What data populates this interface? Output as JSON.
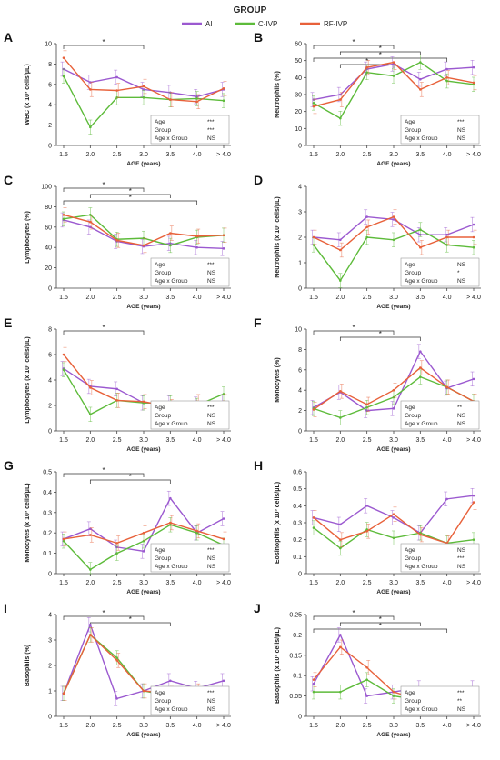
{
  "legend": {
    "title": "GROUP",
    "entries": [
      {
        "label": "AI",
        "color": "#9b59d0"
      },
      {
        "label": "C-IVP",
        "color": "#5dbb3a"
      },
      {
        "label": "RF-IVP",
        "color": "#e8613a"
      }
    ]
  },
  "x_categories": [
    "1.5",
    "2.0",
    "2.5",
    "3.0",
    "3.5",
    "4.0",
    "> 4.0"
  ],
  "xlabel": "AGE (years)",
  "stats_labels": [
    "Age",
    "Group",
    "Age x Group"
  ],
  "chart_data": [
    {
      "letter": "A",
      "type": "line",
      "ylabel": "WBC (x 10³ cells/μL)",
      "ylim": [
        0,
        10
      ],
      "yticks": [
        0,
        2,
        4,
        6,
        8,
        10
      ],
      "series": [
        {
          "name": "AI",
          "values": [
            7.5,
            6.2,
            6.7,
            5.5,
            5.2,
            4.8,
            5.5
          ]
        },
        {
          "name": "C-IVP",
          "values": [
            6.8,
            1.8,
            4.7,
            4.7,
            4.5,
            4.6,
            4.4
          ]
        },
        {
          "name": "RF-IVP",
          "values": [
            8.6,
            5.5,
            5.4,
            5.8,
            4.5,
            4.3,
            5.6
          ]
        }
      ],
      "stats": [
        "***",
        "***",
        "NS"
      ],
      "sig": [
        "*"
      ]
    },
    {
      "letter": "B",
      "type": "line",
      "ylabel": "Neutrophils (%)",
      "ylim": [
        0,
        60
      ],
      "yticks": [
        0,
        10,
        20,
        30,
        40,
        50,
        60
      ],
      "series": [
        {
          "name": "AI",
          "values": [
            27,
            30,
            45,
            48,
            39,
            45,
            46
          ]
        },
        {
          "name": "C-IVP",
          "values": [
            25,
            16,
            43,
            41,
            49,
            38,
            36
          ]
        },
        {
          "name": "RF-IVP",
          "values": [
            23,
            27,
            46,
            49,
            33,
            40,
            37
          ]
        }
      ],
      "stats": [
        "***",
        "NS",
        "NS"
      ],
      "sig": [
        "*",
        "*",
        "*",
        "*"
      ]
    },
    {
      "letter": "C",
      "type": "line",
      "ylabel": "Lymphocytes (%)",
      "ylim": [
        0,
        100
      ],
      "yticks": [
        0,
        20,
        40,
        60,
        80,
        100
      ],
      "series": [
        {
          "name": "AI",
          "values": [
            67,
            60,
            46,
            41,
            44,
            40,
            39
          ]
        },
        {
          "name": "C-IVP",
          "values": [
            68,
            72,
            48,
            49,
            42,
            50,
            52
          ]
        },
        {
          "name": "RF-IVP",
          "values": [
            72,
            65,
            47,
            42,
            54,
            51,
            52
          ]
        }
      ],
      "stats": [
        "***",
        "NS",
        "NS"
      ],
      "sig": [
        "*",
        "*",
        "*"
      ]
    },
    {
      "letter": "D",
      "type": "line",
      "ylabel": "Neutrophils (x 10³ cells/μL)",
      "ylim": [
        0,
        4
      ],
      "yticks": [
        0,
        1,
        2,
        3,
        4
      ],
      "series": [
        {
          "name": "AI",
          "values": [
            2.0,
            1.9,
            2.8,
            2.7,
            2.1,
            2.1,
            2.5
          ]
        },
        {
          "name": "C-IVP",
          "values": [
            1.7,
            0.3,
            2.0,
            1.9,
            2.3,
            1.7,
            1.6
          ]
        },
        {
          "name": "RF-IVP",
          "values": [
            2.0,
            1.5,
            2.4,
            2.8,
            1.6,
            2.0,
            2.0
          ]
        }
      ],
      "stats": [
        "NS",
        "*",
        "NS"
      ],
      "sig": []
    },
    {
      "letter": "E",
      "type": "line",
      "ylabel": "Lymphocytes (x 10³ cells/μL)",
      "ylim": [
        0,
        8
      ],
      "yticks": [
        0,
        2,
        4,
        6,
        8
      ],
      "series": [
        {
          "name": "AI",
          "values": [
            4.9,
            3.5,
            3.3,
            2.2,
            2.2,
            2.1,
            2.3
          ]
        },
        {
          "name": "C-IVP",
          "values": [
            4.8,
            1.3,
            2.4,
            2.2,
            2.2,
            2.0,
            2.9
          ]
        },
        {
          "name": "RF-IVP",
          "values": [
            6.0,
            3.4,
            2.4,
            2.3,
            1.9,
            2.3,
            2.3
          ]
        }
      ],
      "stats": [
        "***",
        "NS",
        "NS"
      ],
      "sig": [
        "*"
      ]
    },
    {
      "letter": "F",
      "type": "line",
      "ylabel": "Monocytes (%)",
      "ylim": [
        0,
        10
      ],
      "yticks": [
        0,
        2,
        4,
        6,
        8,
        10
      ],
      "series": [
        {
          "name": "AI",
          "values": [
            2.3,
            3.8,
            2.0,
            2.2,
            7.8,
            4.2,
            5.1
          ]
        },
        {
          "name": "C-IVP",
          "values": [
            2.2,
            1.3,
            2.3,
            3.3,
            5.3,
            4.3,
            2.9
          ]
        },
        {
          "name": "RF-IVP",
          "values": [
            2.1,
            3.9,
            2.6,
            4.0,
            6.2,
            4.3,
            2.9
          ]
        }
      ],
      "stats": [
        "**",
        "NS",
        "NS"
      ],
      "sig": [
        "*",
        "*"
      ]
    },
    {
      "letter": "G",
      "type": "line",
      "ylabel": "Monocytes (x 10³ cells/μL)",
      "ylim": [
        0,
        0.5
      ],
      "yticks": [
        0,
        0.1,
        0.2,
        0.3,
        0.4,
        0.5
      ],
      "series": [
        {
          "name": "AI",
          "values": [
            0.17,
            0.22,
            0.13,
            0.11,
            0.37,
            0.2,
            0.27
          ]
        },
        {
          "name": "C-IVP",
          "values": [
            0.16,
            0.02,
            0.1,
            0.16,
            0.24,
            0.2,
            0.14
          ]
        },
        {
          "name": "RF-IVP",
          "values": [
            0.17,
            0.19,
            0.15,
            0.2,
            0.25,
            0.21,
            0.17
          ]
        }
      ],
      "stats": [
        "***",
        "NS",
        "NS"
      ],
      "sig": [
        "*",
        "*"
      ]
    },
    {
      "letter": "H",
      "type": "line",
      "ylabel": "Eosinophils (x 10³ cells/μL)",
      "ylim": [
        0,
        0.6
      ],
      "yticks": [
        0,
        0.1,
        0.2,
        0.3,
        0.4,
        0.5,
        0.6
      ],
      "series": [
        {
          "name": "AI",
          "values": [
            0.33,
            0.29,
            0.4,
            0.33,
            0.24,
            0.44,
            0.46
          ]
        },
        {
          "name": "C-IVP",
          "values": [
            0.27,
            0.15,
            0.26,
            0.21,
            0.24,
            0.18,
            0.2
          ]
        },
        {
          "name": "RF-IVP",
          "values": [
            0.33,
            0.2,
            0.25,
            0.35,
            0.23,
            0.18,
            0.42
          ]
        }
      ],
      "stats": [
        "NS",
        "***",
        "NS"
      ],
      "sig": []
    },
    {
      "letter": "I",
      "type": "line",
      "ylabel": "Basophils (%)",
      "ylim": [
        0,
        4
      ],
      "yticks": [
        0,
        1,
        2,
        3,
        4
      ],
      "series": [
        {
          "name": "AI",
          "values": [
            0.9,
            3.6,
            0.7,
            1.0,
            1.4,
            1.1,
            1.4
          ]
        },
        {
          "name": "C-IVP",
          "values": [
            0.9,
            3.2,
            2.3,
            1.0,
            0.8,
            0.8,
            0.8
          ]
        },
        {
          "name": "RF-IVP",
          "values": [
            0.9,
            3.2,
            2.2,
            1.0,
            0.9,
            1.0,
            0.7
          ]
        }
      ],
      "stats": [
        "***",
        "NS",
        "NS"
      ],
      "sig": [
        "*",
        "*"
      ]
    },
    {
      "letter": "J",
      "type": "line",
      "ylabel": "Basophils (x 10³ cells/μL)",
      "ylim": [
        0,
        0.25
      ],
      "yticks": [
        0,
        0.05,
        0.1,
        0.15,
        0.2,
        0.25
      ],
      "series": [
        {
          "name": "AI",
          "values": [
            0.08,
            0.2,
            0.05,
            0.06,
            0.07,
            0.05,
            0.07
          ]
        },
        {
          "name": "C-IVP",
          "values": [
            0.06,
            0.06,
            0.09,
            0.05,
            0.04,
            0.04,
            0.04
          ]
        },
        {
          "name": "RF-IVP",
          "values": [
            0.09,
            0.17,
            0.12,
            0.06,
            0.04,
            0.03,
            0.04
          ]
        }
      ],
      "stats": [
        "***",
        "**",
        "NS"
      ],
      "sig": [
        "*",
        "*",
        "*"
      ]
    }
  ]
}
